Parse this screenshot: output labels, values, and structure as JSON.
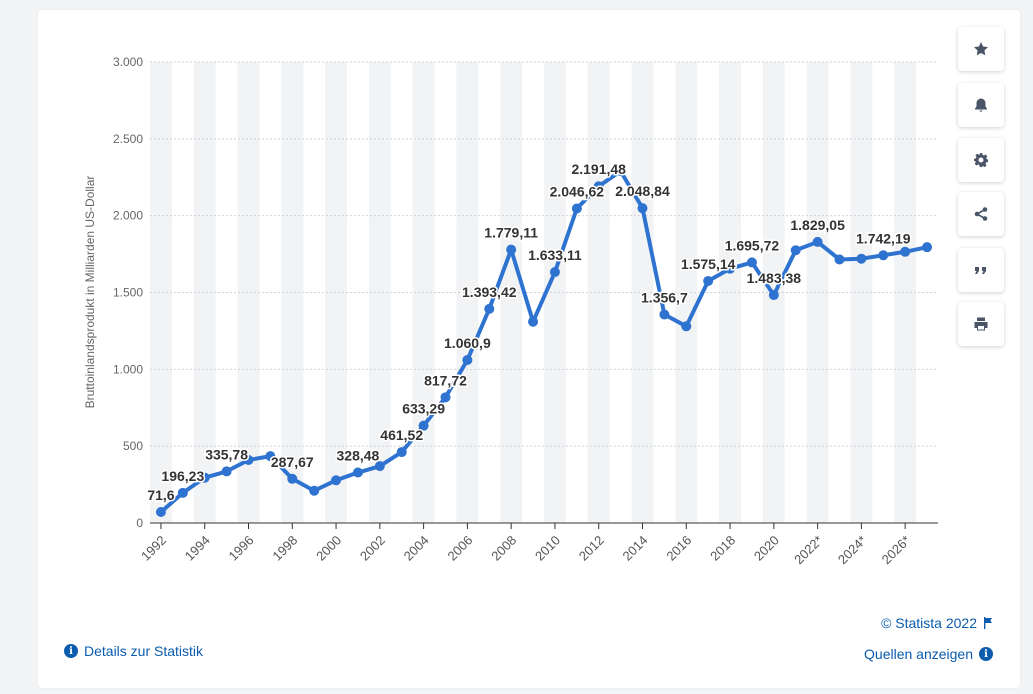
{
  "chart_data": {
    "type": "line",
    "title": "",
    "ylabel": "Bruttoinlandsprodukt in Milliarden US-Dollar",
    "xlabel": "",
    "ylim": [
      0,
      3000
    ],
    "yticks": [
      0,
      500,
      1000,
      1500,
      2000,
      2500,
      3000
    ],
    "ytick_labels": [
      "0",
      "500",
      "1.000",
      "1.500",
      "2.000",
      "2.500",
      "3.000"
    ],
    "x": [
      1992,
      1993,
      1994,
      1995,
      1996,
      1997,
      1998,
      1999,
      2000,
      2001,
      2002,
      2003,
      2004,
      2005,
      2006,
      2007,
      2008,
      2009,
      2010,
      2011,
      2012,
      2013,
      2014,
      2015,
      2016,
      2017,
      2018,
      2019,
      2020,
      2021,
      2022,
      2023,
      2024,
      2025,
      2026,
      2027
    ],
    "xtick_labels": [
      "1992",
      "1994",
      "1996",
      "1998",
      "2000",
      "2002",
      "2004",
      "2006",
      "2008",
      "2010",
      "2012",
      "2014",
      "2016",
      "2018",
      "2020",
      "2022*",
      "2024*",
      "2026*"
    ],
    "values": [
      71.6,
      196.23,
      295,
      335.78,
      410,
      435,
      287.67,
      210,
      278,
      328.48,
      370,
      461.52,
      633.29,
      817.72,
      1060.9,
      1393.42,
      1779.11,
      1310,
      1633.11,
      2046.62,
      2191.48,
      2290,
      2048.84,
      1356.7,
      1280,
      1575.14,
      1655,
      1695.72,
      1483.38,
      1775,
      1829.05,
      1715,
      1720,
      1742.19,
      1765,
      1795
    ],
    "data_labels": [
      {
        "x": 1992,
        "label": "71,6"
      },
      {
        "x": 1993,
        "label": "196,23"
      },
      {
        "x": 1995,
        "label": "335,78"
      },
      {
        "x": 1998,
        "label": "287,67"
      },
      {
        "x": 2001,
        "label": "328,48"
      },
      {
        "x": 2003,
        "label": "461,52"
      },
      {
        "x": 2004,
        "label": "633,29"
      },
      {
        "x": 2005,
        "label": "817,72"
      },
      {
        "x": 2006,
        "label": "1.060,9"
      },
      {
        "x": 2007,
        "label": "1.393,42"
      },
      {
        "x": 2008,
        "label": "1.779,11"
      },
      {
        "x": 2010,
        "label": "1.633,11"
      },
      {
        "x": 2011,
        "label": "2.046,62"
      },
      {
        "x": 2012,
        "label": "2.191,48"
      },
      {
        "x": 2014,
        "label": "2.048,84"
      },
      {
        "x": 2015,
        "label": "1.356,7"
      },
      {
        "x": 2017,
        "label": "1.575,14"
      },
      {
        "x": 2019,
        "label": "1.695,72"
      },
      {
        "x": 2020,
        "label": "1.483,38"
      },
      {
        "x": 2022,
        "label": "1.829,05"
      },
      {
        "x": 2025,
        "label": "1.742,19"
      }
    ],
    "grid": true,
    "line_color": "#2f73d0",
    "band_color": "#f2f3f5"
  },
  "footer": {
    "details_label": "Details zur Statistik",
    "credit_label": "© Statista 2022",
    "sources_label": "Quellen anzeigen",
    "link_color": "#0b5cad"
  },
  "toolbar": {
    "icons": [
      "star-icon",
      "bell-icon",
      "gear-icon",
      "share-icon",
      "quote-icon",
      "print-icon"
    ]
  }
}
